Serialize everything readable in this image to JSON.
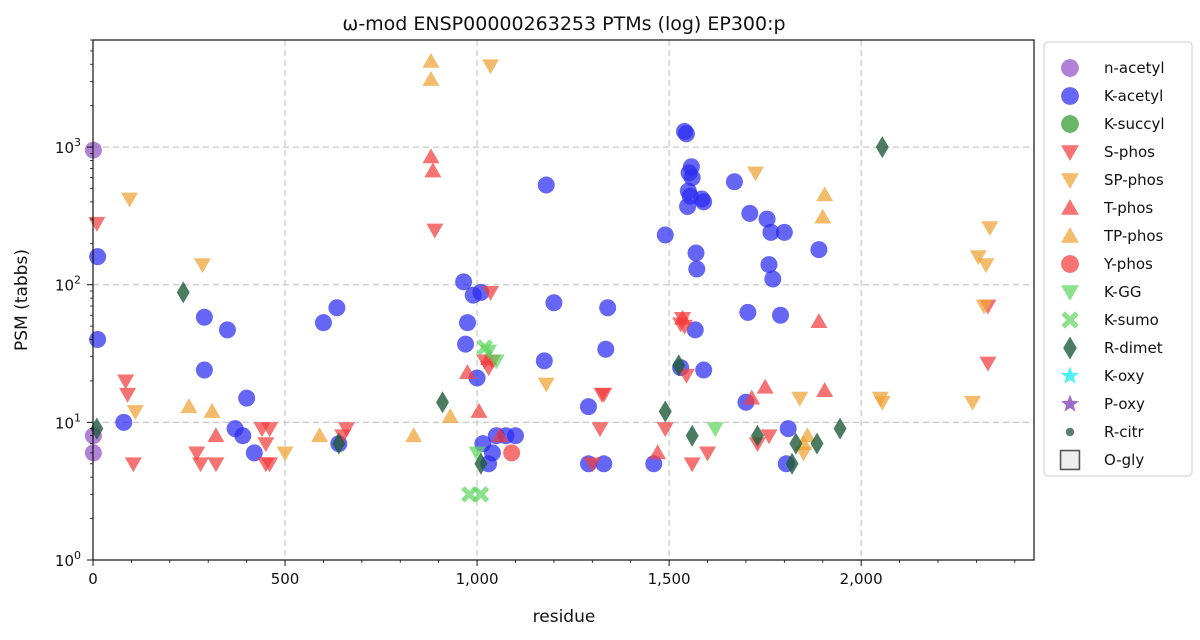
{
  "chart_data": {
    "type": "scatter",
    "title": "ω-mod ENSP00000263253 PTMs (log) EP300:p",
    "xlabel": "residue",
    "ylabel": "PSM (tabbs)",
    "xlim": [
      0,
      2450
    ],
    "ylim": [
      1,
      6000
    ],
    "yscale": "log",
    "grid": true,
    "legend_position": "outside-right-top",
    "x_ticks": [
      0,
      500,
      1000,
      1500,
      2000
    ],
    "x_tick_labels": [
      "0",
      "500",
      "1,000",
      "1,500",
      "2,000"
    ],
    "y_ticks": [
      1,
      10,
      100,
      1000
    ],
    "y_tick_labels": [
      "10^0",
      "10^1",
      "10^2",
      "10^3"
    ],
    "series": [
      {
        "name": "n-acetyl",
        "marker": "circle",
        "color": "#9150c4",
        "points": [
          [
            1,
            950
          ],
          [
            1,
            8
          ],
          [
            1,
            6
          ]
        ]
      },
      {
        "name": "K-acetyl",
        "marker": "circle",
        "color": "#2b2bf0",
        "points": [
          [
            12,
            160
          ],
          [
            12,
            40
          ],
          [
            80,
            10
          ],
          [
            290,
            58
          ],
          [
            290,
            24
          ],
          [
            350,
            47
          ],
          [
            370,
            9
          ],
          [
            390,
            8
          ],
          [
            400,
            15
          ],
          [
            420,
            6
          ],
          [
            600,
            53
          ],
          [
            635,
            68
          ],
          [
            640,
            7
          ],
          [
            965,
            105
          ],
          [
            975,
            53
          ],
          [
            970,
            37
          ],
          [
            990,
            84
          ],
          [
            1000,
            21
          ],
          [
            1010,
            88
          ],
          [
            1015,
            7
          ],
          [
            1030,
            5
          ],
          [
            1040,
            6
          ],
          [
            1050,
            8
          ],
          [
            1075,
            8
          ],
          [
            1100,
            8
          ],
          [
            1175,
            28
          ],
          [
            1180,
            530
          ],
          [
            1200,
            74
          ],
          [
            1290,
            13
          ],
          [
            1290,
            5
          ],
          [
            1330,
            5
          ],
          [
            1335,
            34
          ],
          [
            1340,
            68
          ],
          [
            1460,
            5
          ],
          [
            1490,
            230
          ],
          [
            1530,
            25
          ],
          [
            1540,
            1300
          ],
          [
            1545,
            1250
          ],
          [
            1548,
            370
          ],
          [
            1550,
            480
          ],
          [
            1552,
            650
          ],
          [
            1555,
            440
          ],
          [
            1558,
            720
          ],
          [
            1560,
            600
          ],
          [
            1568,
            47
          ],
          [
            1570,
            170
          ],
          [
            1572,
            130
          ],
          [
            1585,
            420
          ],
          [
            1590,
            400
          ],
          [
            1590,
            24
          ],
          [
            1670,
            560
          ],
          [
            1700,
            14
          ],
          [
            1705,
            63
          ],
          [
            1710,
            330
          ],
          [
            1755,
            300
          ],
          [
            1760,
            140
          ],
          [
            1765,
            240
          ],
          [
            1770,
            110
          ],
          [
            1790,
            60
          ],
          [
            1800,
            240
          ],
          [
            1805,
            5
          ],
          [
            1810,
            9
          ],
          [
            1890,
            180
          ]
        ]
      },
      {
        "name": "K-succyl",
        "marker": "circle",
        "color": "#2f9a2f",
        "points": []
      },
      {
        "name": "S-phos",
        "marker": "triangle-down",
        "color": "#f23d3d",
        "points": [
          [
            10,
            280
          ],
          [
            85,
            20
          ],
          [
            90,
            16
          ],
          [
            105,
            5
          ],
          [
            270,
            6
          ],
          [
            280,
            5
          ],
          [
            320,
            5
          ],
          [
            440,
            9
          ],
          [
            450,
            7
          ],
          [
            450,
            5
          ],
          [
            460,
            9
          ],
          [
            460,
            5
          ],
          [
            650,
            8
          ],
          [
            660,
            9
          ],
          [
            890,
            250
          ],
          [
            1020,
            28
          ],
          [
            1030,
            25
          ],
          [
            1035,
            88
          ],
          [
            1040,
            28
          ],
          [
            1300,
            5
          ],
          [
            1320,
            9
          ],
          [
            1325,
            16
          ],
          [
            1330,
            16
          ],
          [
            1490,
            9
          ],
          [
            1530,
            52
          ],
          [
            1535,
            57
          ],
          [
            1540,
            50
          ],
          [
            1545,
            22
          ],
          [
            1560,
            5
          ],
          [
            1600,
            6
          ],
          [
            1730,
            7
          ],
          [
            1760,
            8
          ],
          [
            2330,
            70
          ],
          [
            2330,
            27
          ]
        ]
      },
      {
        "name": "SP-phos",
        "marker": "triangle-down",
        "color": "#eea235",
        "points": [
          [
            95,
            420
          ],
          [
            110,
            12
          ],
          [
            285,
            140
          ],
          [
            500,
            6
          ],
          [
            1035,
            3900
          ],
          [
            1180,
            19
          ],
          [
            1725,
            650
          ],
          [
            1840,
            15
          ],
          [
            1850,
            6
          ],
          [
            2050,
            15
          ],
          [
            2055,
            14
          ],
          [
            2290,
            14
          ],
          [
            2305,
            160
          ],
          [
            2320,
            70
          ],
          [
            2325,
            140
          ],
          [
            2335,
            260
          ]
        ]
      },
      {
        "name": "T-phos",
        "marker": "triangle-up",
        "color": "#f23d3d",
        "points": [
          [
            320,
            8
          ],
          [
            880,
            850
          ],
          [
            885,
            670
          ],
          [
            975,
            23
          ],
          [
            1005,
            12
          ],
          [
            1030,
            29
          ],
          [
            1060,
            8
          ],
          [
            1470,
            6
          ],
          [
            1535,
            57
          ],
          [
            1715,
            15
          ],
          [
            1750,
            18
          ],
          [
            1890,
            54
          ],
          [
            1905,
            17
          ]
        ]
      },
      {
        "name": "TP-phos",
        "marker": "triangle-up",
        "color": "#eea235",
        "points": [
          [
            250,
            13
          ],
          [
            310,
            12
          ],
          [
            590,
            8
          ],
          [
            835,
            8
          ],
          [
            880,
            4200
          ],
          [
            880,
            3100
          ],
          [
            930,
            11
          ],
          [
            1850,
            7
          ],
          [
            1860,
            8
          ],
          [
            1905,
            450
          ],
          [
            1900,
            310
          ]
        ]
      },
      {
        "name": "Y-phos",
        "marker": "circle",
        "color": "#f23d3d",
        "points": [
          [
            1090,
            6
          ]
        ]
      },
      {
        "name": "K-GG",
        "marker": "triangle-down",
        "color": "#5fd65f",
        "points": [
          [
            1000,
            6
          ],
          [
            1030,
            33
          ],
          [
            1050,
            28
          ],
          [
            1620,
            9
          ]
        ]
      },
      {
        "name": "K-sumo",
        "marker": "x",
        "color": "#5fd65f",
        "points": [
          [
            980,
            3
          ],
          [
            1010,
            3
          ],
          [
            1020,
            35
          ]
        ]
      },
      {
        "name": "R-dimet",
        "marker": "diamond",
        "color": "#1e5b3a",
        "points": [
          [
            10,
            9
          ],
          [
            235,
            88
          ],
          [
            640,
            7
          ],
          [
            910,
            14
          ],
          [
            1010,
            5
          ],
          [
            1490,
            12
          ],
          [
            1525,
            26
          ],
          [
            1560,
            8
          ],
          [
            1730,
            8
          ],
          [
            1820,
            5
          ],
          [
            1830,
            7
          ],
          [
            1885,
            7
          ],
          [
            1945,
            9
          ],
          [
            2055,
            1000
          ]
        ]
      },
      {
        "name": "K-oxy",
        "marker": "star",
        "color": "#2ff0f0",
        "points": []
      },
      {
        "name": "P-oxy",
        "marker": "star",
        "color": "#9150c4",
        "points": []
      },
      {
        "name": "R-citr",
        "marker": "small-circle",
        "color": "#3d6b52",
        "points": []
      },
      {
        "name": "O-gly",
        "marker": "square-open",
        "color": "#555555",
        "points": []
      }
    ]
  }
}
